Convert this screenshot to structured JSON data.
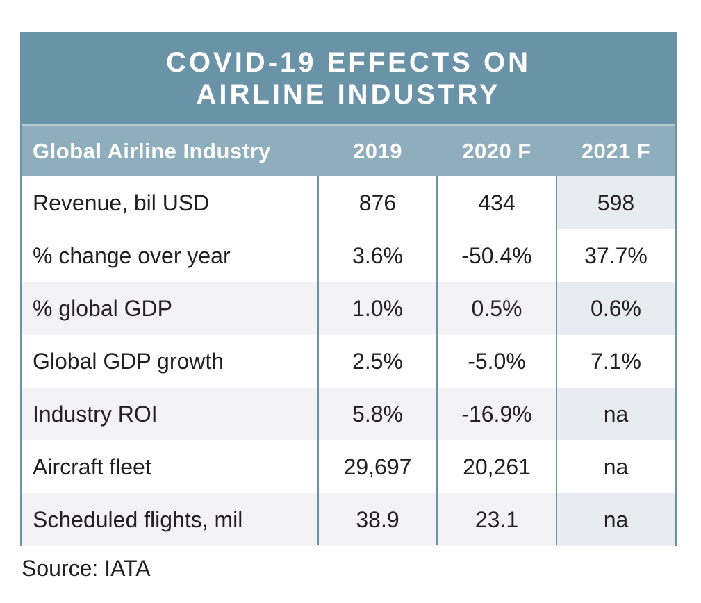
{
  "title": "COVID-19 EFFECTS ON AIRLINE INDUSTRY",
  "source": "Source: IATA",
  "colors": {
    "title_band": "#6b93a8",
    "header_row": "#8eaebe",
    "border": "#6b93a8",
    "row_shade": "#f3f3f5",
    "text": "#231f20"
  },
  "chart_data": {
    "type": "table",
    "title": "COVID-19 EFFECTS ON AIRLINE INDUSTRY",
    "columns": [
      "Global Airline Industry",
      "2019",
      "2020 F",
      "2021 F"
    ],
    "rows": [
      [
        "Revenue, bil USD",
        "876",
        "434",
        "598"
      ],
      [
        "% change over year",
        "3.6%",
        "-50.4%",
        "37.7%"
      ],
      [
        "% global GDP",
        "1.0%",
        "0.5%",
        "0.6%"
      ],
      [
        "Global GDP growth",
        "2.5%",
        "-5.0%",
        "7.1%"
      ],
      [
        "Industry ROI",
        "5.8%",
        "-16.9%",
        "na"
      ],
      [
        "Aircraft fleet",
        "29,697",
        "20,261",
        "na"
      ],
      [
        "Scheduled flights, mil",
        "38.9",
        "23.1",
        "na"
      ]
    ],
    "source": "Source: IATA"
  }
}
